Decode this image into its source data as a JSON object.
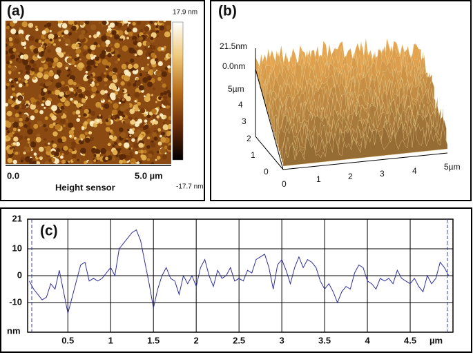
{
  "panel_a": {
    "label": "(a)",
    "scale_max": "17.9 nm",
    "scale_min": "-17.7 nm",
    "x_start": "0.0",
    "x_end": "5.0 µm",
    "caption": "Height sensor"
  },
  "panel_b": {
    "label": "(b)",
    "z_max": "21.5nm",
    "z_min": "0.0nm",
    "y_ticks": [
      "5µm",
      "4",
      "3",
      "2",
      "1",
      "0"
    ],
    "x_ticks": [
      "0",
      "1",
      "2",
      "3",
      "4",
      "5µm"
    ]
  },
  "panel_c": {
    "label": "(c)"
  },
  "chart_data": {
    "type": "line",
    "x_label": "µm",
    "y_label": "nm",
    "xlim": [
      0.03,
      5.0
    ],
    "ylim": [
      -21,
      21
    ],
    "xticks": [
      0.5,
      1,
      1.5,
      2,
      2.5,
      3,
      3.5,
      4,
      4.5
    ],
    "yticks": [
      21,
      10,
      0,
      -10
    ],
    "grid": true,
    "series": [
      {
        "color": "#2e2e9e",
        "x": [
          0.05,
          0.1,
          0.15,
          0.2,
          0.25,
          0.3,
          0.35,
          0.4,
          0.45,
          0.5,
          0.55,
          0.6,
          0.65,
          0.7,
          0.75,
          0.8,
          0.85,
          0.9,
          0.95,
          1.0,
          1.05,
          1.1,
          1.15,
          1.2,
          1.25,
          1.3,
          1.35,
          1.4,
          1.45,
          1.5,
          1.55,
          1.6,
          1.65,
          1.7,
          1.75,
          1.8,
          1.85,
          1.9,
          1.95,
          2.0,
          2.05,
          2.1,
          2.15,
          2.2,
          2.25,
          2.3,
          2.35,
          2.4,
          2.45,
          2.5,
          2.55,
          2.6,
          2.65,
          2.7,
          2.75,
          2.8,
          2.85,
          2.9,
          2.95,
          3.0,
          3.05,
          3.1,
          3.15,
          3.2,
          3.25,
          3.3,
          3.35,
          3.4,
          3.45,
          3.5,
          3.55,
          3.6,
          3.65,
          3.7,
          3.75,
          3.8,
          3.85,
          3.9,
          3.95,
          4.0,
          4.05,
          4.1,
          4.15,
          4.2,
          4.25,
          4.3,
          4.35,
          4.4,
          4.45,
          4.5,
          4.55,
          4.6,
          4.65,
          4.7,
          4.75,
          4.8,
          4.85,
          4.9,
          4.95
        ],
        "values": [
          -2,
          -5,
          -7,
          -9,
          -8,
          -3,
          -5,
          2,
          -6,
          -14,
          -8,
          -2,
          4,
          5,
          -2,
          -1,
          -2,
          -1,
          1,
          3,
          0,
          10,
          12,
          14,
          16,
          17,
          13,
          5,
          -3,
          -12,
          -5,
          0,
          3,
          -1,
          -2,
          -7,
          0,
          -3,
          0,
          -4,
          3,
          6,
          0,
          -4,
          2,
          -1,
          0,
          3,
          -2,
          -1,
          -2,
          2,
          1,
          6,
          7,
          8,
          3,
          -5,
          4,
          6,
          2,
          -3,
          3,
          7,
          3,
          6,
          5,
          3,
          -2,
          -5,
          -3,
          -6,
          -10,
          -6,
          -4,
          -5,
          1,
          4,
          3,
          -2,
          -3,
          -5,
          -1,
          -2,
          -1,
          -3,
          2,
          -1,
          -2,
          -3,
          -1,
          -4,
          -6,
          0,
          -3,
          -1,
          5,
          3,
          0
        ]
      }
    ]
  }
}
